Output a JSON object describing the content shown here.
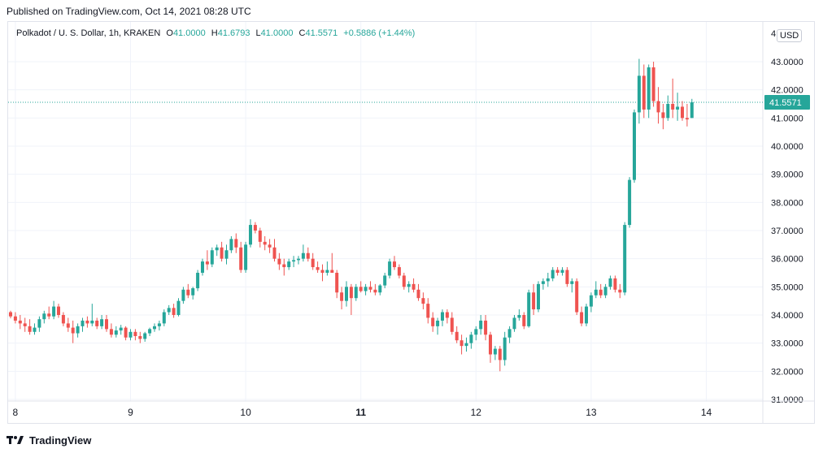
{
  "published": "Published on TradingView.com, Oct 14, 2021 08:28 UTC",
  "legend": {
    "symbol": "Polkadot / U. S. Dollar, 1h, KRAKEN",
    "o_label": "O",
    "o_value": "41.0000",
    "h_label": "H",
    "h_value": "41.6793",
    "l_label": "L",
    "l_value": "41.0000",
    "c_label": "C",
    "c_value": "41.5571",
    "change": "+0.5886 (+1.44%)"
  },
  "currency_button": "USD",
  "last_price_label": "41.5571",
  "footer_brand": "TradingView",
  "colors": {
    "up": "#26a69a",
    "down": "#ef5350",
    "grid": "#f0f3fa",
    "axis_text": "#131722"
  },
  "chart_data": {
    "type": "candlestick",
    "ylim": [
      31.0,
      44.0
    ],
    "y_ticks": [
      {
        "value": 31,
        "label": "31.0000"
      },
      {
        "value": 32,
        "label": "32.0000"
      },
      {
        "value": 33,
        "label": "33.0000"
      },
      {
        "value": 34,
        "label": "34.0000"
      },
      {
        "value": 35,
        "label": "35.0000"
      },
      {
        "value": 36,
        "label": "36.0000"
      },
      {
        "value": 37,
        "label": "37.0000"
      },
      {
        "value": 38,
        "label": "38.0000"
      },
      {
        "value": 39,
        "label": "39.0000"
      },
      {
        "value": 40,
        "label": "40.0000"
      },
      {
        "value": 41,
        "label": "41.0000"
      },
      {
        "value": 42,
        "label": "42.0000"
      },
      {
        "value": 43,
        "label": "43.0000"
      }
    ],
    "top_tick_label": "4",
    "x_ticks": [
      {
        "bar": 1,
        "label": "8",
        "bold": false
      },
      {
        "bar": 25,
        "label": "9",
        "bold": false
      },
      {
        "bar": 49,
        "label": "10",
        "bold": false
      },
      {
        "bar": 73,
        "label": "11",
        "bold": true
      },
      {
        "bar": 97,
        "label": "12",
        "bold": false
      },
      {
        "bar": 121,
        "label": "13",
        "bold": false
      },
      {
        "bar": 145,
        "label": "14",
        "bold": false
      }
    ],
    "last_price": 41.5571,
    "candles": [
      [
        34.1,
        34.15,
        33.88,
        33.95
      ],
      [
        33.95,
        34.1,
        33.7,
        33.8
      ],
      [
        33.8,
        34.0,
        33.5,
        33.7
      ],
      [
        33.7,
        33.9,
        33.4,
        33.6
      ],
      [
        33.6,
        33.85,
        33.3,
        33.4
      ],
      [
        33.4,
        33.7,
        33.3,
        33.55
      ],
      [
        33.55,
        33.95,
        33.4,
        33.85
      ],
      [
        33.85,
        34.15,
        33.7,
        34.05
      ],
      [
        34.05,
        34.3,
        33.85,
        33.95
      ],
      [
        33.95,
        34.5,
        33.85,
        34.3
      ],
      [
        34.3,
        34.4,
        33.9,
        34.0
      ],
      [
        34.0,
        34.1,
        33.6,
        33.7
      ],
      [
        33.7,
        33.9,
        33.4,
        33.55
      ],
      [
        33.55,
        33.8,
        33.0,
        33.35
      ],
      [
        33.35,
        33.7,
        33.2,
        33.6
      ],
      [
        33.6,
        33.9,
        33.4,
        33.8
      ],
      [
        33.8,
        33.95,
        33.55,
        33.7
      ],
      [
        33.7,
        34.4,
        33.6,
        33.8
      ],
      [
        33.8,
        33.9,
        33.5,
        33.6
      ],
      [
        33.6,
        34.0,
        33.5,
        33.85
      ],
      [
        33.85,
        34.0,
        33.4,
        33.5
      ],
      [
        33.5,
        33.7,
        33.2,
        33.3
      ],
      [
        33.3,
        33.6,
        33.2,
        33.45
      ],
      [
        33.45,
        33.65,
        33.3,
        33.55
      ],
      [
        33.55,
        33.6,
        33.1,
        33.2
      ],
      [
        33.2,
        33.5,
        33.1,
        33.4
      ],
      [
        33.4,
        33.5,
        33.1,
        33.25
      ],
      [
        33.25,
        33.4,
        33.0,
        33.15
      ],
      [
        33.15,
        33.4,
        33.05,
        33.35
      ],
      [
        33.35,
        33.55,
        33.25,
        33.5
      ],
      [
        33.5,
        33.7,
        33.4,
        33.6
      ],
      [
        33.6,
        33.8,
        33.45,
        33.7
      ],
      [
        33.7,
        34.2,
        33.6,
        34.1
      ],
      [
        34.1,
        34.35,
        34.0,
        34.25
      ],
      [
        34.25,
        34.4,
        33.9,
        34.0
      ],
      [
        34.0,
        34.6,
        33.95,
        34.5
      ],
      [
        34.5,
        35.0,
        34.4,
        34.9
      ],
      [
        34.9,
        35.1,
        34.6,
        34.7
      ],
      [
        34.7,
        35.0,
        34.55,
        34.95
      ],
      [
        34.95,
        35.6,
        34.85,
        35.5
      ],
      [
        35.5,
        36.0,
        35.4,
        35.9
      ],
      [
        35.9,
        36.3,
        35.6,
        35.8
      ],
      [
        35.8,
        36.4,
        35.7,
        36.3
      ],
      [
        36.3,
        36.5,
        36.1,
        36.4
      ],
      [
        36.4,
        36.6,
        35.9,
        36.0
      ],
      [
        36.0,
        36.5,
        35.8,
        36.3
      ],
      [
        36.3,
        36.8,
        36.2,
        36.7
      ],
      [
        36.7,
        36.9,
        36.2,
        36.4
      ],
      [
        36.4,
        36.6,
        35.5,
        35.6
      ],
      [
        35.6,
        36.6,
        35.5,
        36.5
      ],
      [
        36.5,
        37.4,
        36.4,
        37.2
      ],
      [
        37.2,
        37.3,
        36.9,
        37.0
      ],
      [
        37.0,
        37.1,
        36.4,
        36.6
      ],
      [
        36.6,
        36.8,
        36.3,
        36.5
      ],
      [
        36.5,
        36.7,
        36.2,
        36.4
      ],
      [
        36.4,
        36.7,
        35.9,
        36.0
      ],
      [
        36.0,
        36.2,
        35.6,
        35.8
      ],
      [
        35.8,
        36.0,
        35.4,
        35.7
      ],
      [
        35.7,
        36.0,
        35.6,
        35.9
      ],
      [
        35.9,
        36.1,
        35.7,
        35.95
      ],
      [
        35.95,
        36.1,
        35.8,
        36.0
      ],
      [
        36.0,
        36.5,
        35.9,
        36.2
      ],
      [
        36.2,
        36.4,
        35.9,
        36.0
      ],
      [
        36.0,
        36.2,
        35.6,
        35.7
      ],
      [
        35.7,
        35.9,
        35.5,
        35.6
      ],
      [
        35.6,
        35.8,
        35.2,
        35.5
      ],
      [
        35.5,
        35.9,
        35.4,
        35.6
      ],
      [
        35.6,
        36.2,
        35.5,
        35.5
      ],
      [
        35.5,
        35.6,
        34.6,
        34.8
      ],
      [
        34.8,
        35.0,
        34.2,
        34.5
      ],
      [
        34.5,
        35.2,
        34.3,
        35.0
      ],
      [
        35.0,
        35.1,
        34.0,
        34.6
      ],
      [
        34.6,
        35.1,
        34.5,
        35.0
      ],
      [
        35.0,
        35.2,
        34.8,
        34.85
      ],
      [
        34.85,
        35.1,
        34.7,
        35.0
      ],
      [
        35.0,
        35.2,
        34.8,
        34.9
      ],
      [
        34.9,
        35.1,
        34.7,
        34.8
      ],
      [
        34.8,
        35.1,
        34.7,
        35.05
      ],
      [
        35.05,
        35.5,
        34.95,
        35.4
      ],
      [
        35.4,
        36.0,
        35.3,
        35.9
      ],
      [
        35.9,
        36.1,
        35.6,
        35.7
      ],
      [
        35.7,
        35.8,
        35.3,
        35.4
      ],
      [
        35.4,
        35.5,
        34.9,
        35.0
      ],
      [
        35.0,
        35.2,
        34.8,
        35.1
      ],
      [
        35.1,
        35.3,
        34.8,
        34.9
      ],
      [
        34.9,
        35.1,
        34.5,
        34.6
      ],
      [
        34.6,
        34.8,
        34.2,
        34.4
      ],
      [
        34.4,
        34.6,
        33.7,
        33.9
      ],
      [
        33.9,
        34.1,
        33.4,
        33.6
      ],
      [
        33.6,
        33.9,
        33.3,
        33.8
      ],
      [
        33.8,
        34.2,
        33.6,
        34.1
      ],
      [
        34.1,
        34.2,
        33.7,
        33.9
      ],
      [
        33.9,
        34.1,
        33.3,
        33.4
      ],
      [
        33.4,
        33.6,
        33.0,
        33.1
      ],
      [
        33.1,
        33.3,
        32.6,
        32.9
      ],
      [
        32.9,
        33.2,
        32.7,
        33.0
      ],
      [
        33.0,
        33.4,
        32.8,
        33.3
      ],
      [
        33.3,
        33.6,
        33.1,
        33.5
      ],
      [
        33.5,
        34.0,
        33.3,
        33.8
      ],
      [
        33.8,
        34.0,
        33.1,
        33.3
      ],
      [
        33.3,
        33.4,
        32.3,
        32.6
      ],
      [
        32.6,
        32.9,
        32.4,
        32.8
      ],
      [
        32.8,
        32.9,
        32.0,
        32.4
      ],
      [
        32.4,
        33.4,
        32.2,
        33.2
      ],
      [
        33.2,
        33.6,
        33.0,
        33.5
      ],
      [
        33.5,
        34.0,
        33.4,
        33.9
      ],
      [
        33.9,
        34.2,
        33.8,
        34.0
      ],
      [
        34.0,
        34.1,
        33.5,
        33.6
      ],
      [
        33.6,
        34.9,
        33.55,
        34.8
      ],
      [
        34.8,
        35.1,
        34.0,
        34.2
      ],
      [
        34.2,
        35.2,
        34.1,
        35.1
      ],
      [
        35.1,
        35.3,
        34.9,
        35.2
      ],
      [
        35.2,
        35.5,
        35.0,
        35.3
      ],
      [
        35.3,
        35.7,
        35.2,
        35.6
      ],
      [
        35.6,
        35.7,
        35.4,
        35.5
      ],
      [
        35.5,
        35.7,
        35.4,
        35.6
      ],
      [
        35.6,
        35.7,
        35.0,
        35.1
      ],
      [
        35.1,
        35.3,
        34.8,
        35.2
      ],
      [
        35.2,
        35.3,
        34.0,
        34.1
      ],
      [
        34.1,
        34.3,
        33.6,
        33.7
      ],
      [
        33.7,
        34.4,
        33.6,
        34.3
      ],
      [
        34.3,
        34.8,
        34.1,
        34.7
      ],
      [
        34.7,
        35.2,
        34.6,
        34.9
      ],
      [
        34.9,
        35.1,
        34.6,
        34.7
      ],
      [
        34.7,
        35.1,
        34.6,
        35.0
      ],
      [
        35.0,
        35.4,
        34.9,
        35.3
      ],
      [
        35.3,
        35.4,
        34.8,
        34.9
      ],
      [
        34.9,
        35.1,
        34.6,
        34.8
      ],
      [
        34.8,
        37.3,
        34.7,
        37.2
      ],
      [
        37.2,
        38.9,
        37.1,
        38.8
      ],
      [
        38.8,
        41.3,
        38.7,
        41.2
      ],
      [
        41.2,
        43.1,
        40.8,
        42.5
      ],
      [
        42.5,
        42.9,
        41.0,
        41.3
      ],
      [
        41.3,
        42.9,
        41.0,
        42.8
      ],
      [
        42.8,
        43.0,
        41.4,
        41.6
      ],
      [
        41.6,
        42.1,
        40.8,
        41.2
      ],
      [
        41.2,
        41.5,
        40.6,
        41.0
      ],
      [
        41.0,
        41.8,
        40.9,
        41.5
      ],
      [
        41.5,
        42.4,
        41.0,
        41.3
      ],
      [
        41.3,
        41.9,
        40.9,
        41.4
      ],
      [
        41.4,
        41.6,
        40.9,
        41.0
      ],
      [
        41.0,
        41.5,
        40.7,
        40.95
      ],
      [
        41.0,
        41.6793,
        41.0,
        41.5571
      ]
    ]
  }
}
